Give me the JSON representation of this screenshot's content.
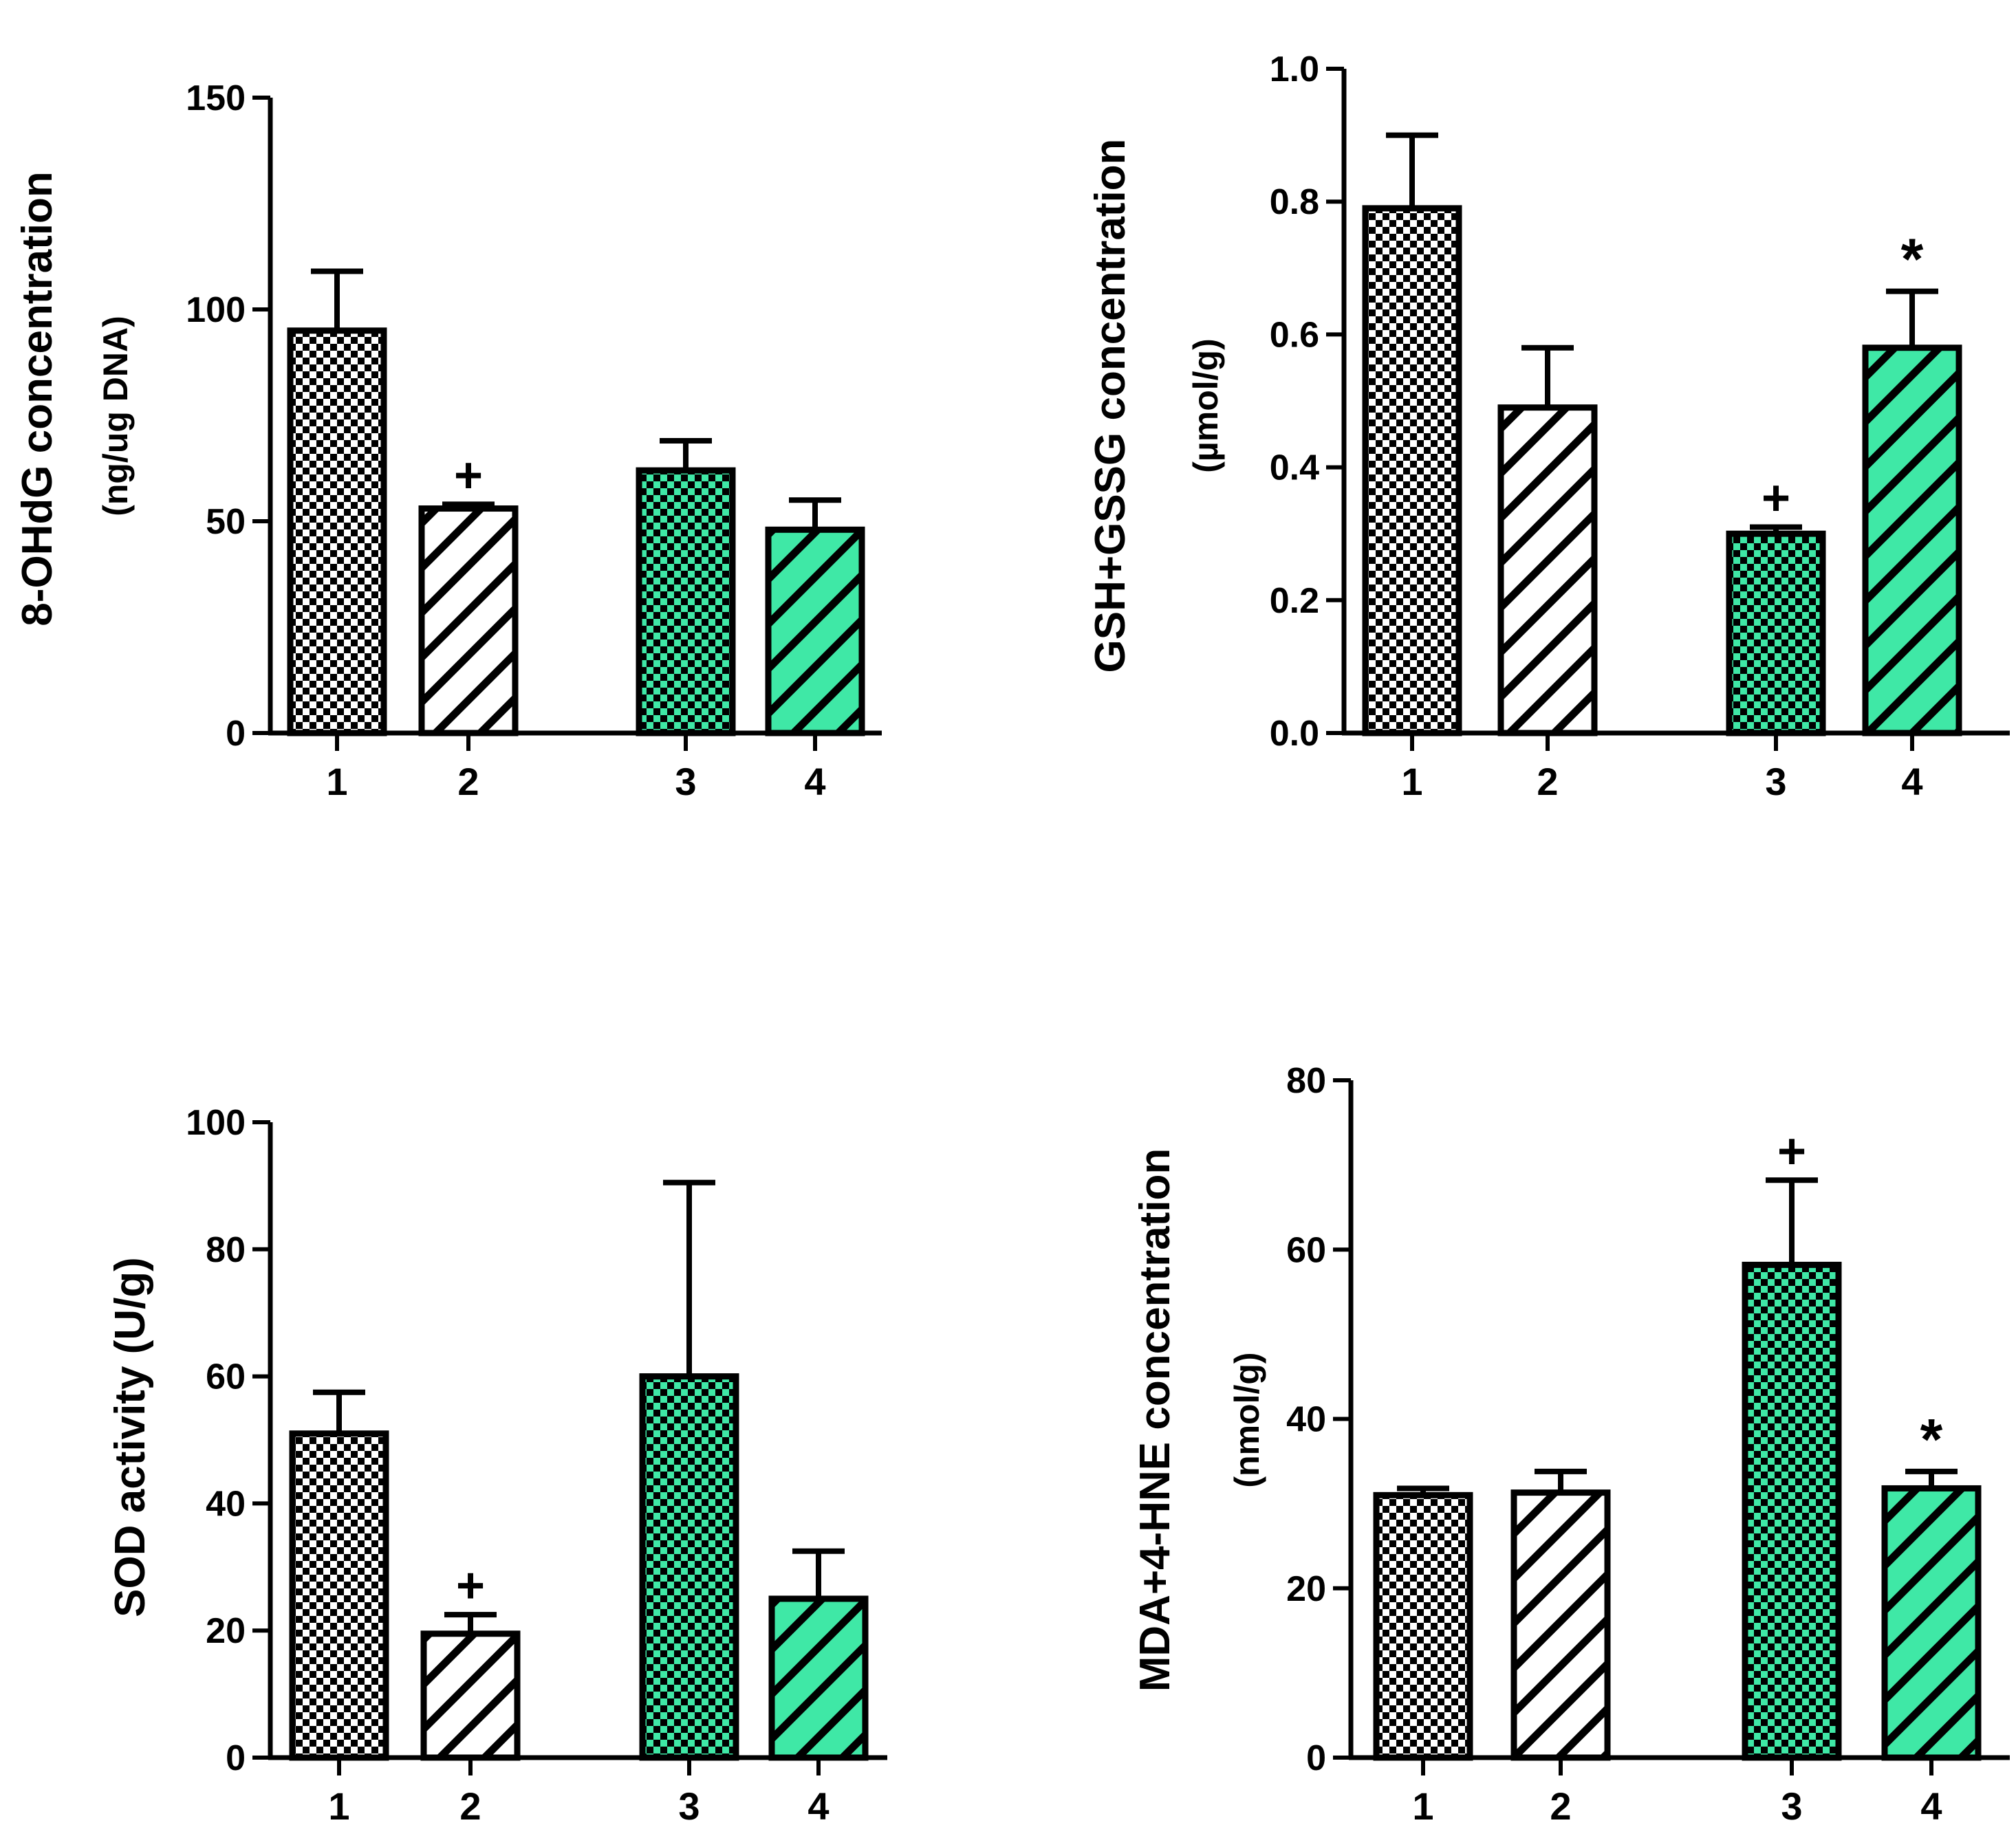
{
  "colors": {
    "ink": "#000000",
    "white_fill": "#ffffff",
    "green_fill": "#3fe8a6"
  },
  "chart_data": [
    {
      "type": "bar",
      "name": "panel-a",
      "categories": [
        "1",
        "2",
        "3",
        "4"
      ],
      "values": [
        95,
        53,
        62,
        48
      ],
      "errors": [
        14,
        1,
        7,
        7
      ],
      "patterns": [
        "checker",
        "hatch",
        "checker",
        "hatch"
      ],
      "fills": [
        "white",
        "white",
        "green",
        "green"
      ],
      "markers": [
        "",
        "+",
        "",
        ""
      ],
      "title": "",
      "xlabel": "",
      "ylabel": "8-OHdG concentration",
      "ylabel2": "(ng/ug DNA)",
      "ylim": [
        0,
        150
      ],
      "yticks": [
        0,
        50,
        100,
        150
      ],
      "ytick_labels": [
        "0",
        "50",
        "100",
        "150"
      ]
    },
    {
      "type": "bar",
      "name": "panel-b",
      "categories": [
        "1",
        "2",
        "3",
        "4"
      ],
      "values": [
        0.79,
        0.49,
        0.3,
        0.58
      ],
      "errors": [
        0.11,
        0.09,
        0.01,
        0.085
      ],
      "patterns": [
        "checker",
        "hatch",
        "checker",
        "hatch"
      ],
      "fills": [
        "white",
        "white",
        "green",
        "green"
      ],
      "markers": [
        "",
        "",
        "+",
        "*"
      ],
      "title": "",
      "xlabel": "",
      "ylabel": "GSH+GSSG concentration",
      "ylabel2": "(µmol/g)",
      "ylim": [
        0,
        1.0
      ],
      "yticks": [
        0,
        0.2,
        0.4,
        0.6,
        0.8,
        1.0
      ],
      "ytick_labels": [
        "0.0",
        "0.2",
        "0.4",
        "0.6",
        "0.8",
        "1.0"
      ]
    },
    {
      "type": "bar",
      "name": "panel-c",
      "categories": [
        "1",
        "2",
        "3",
        "4"
      ],
      "values": [
        51,
        19.5,
        60,
        25
      ],
      "errors": [
        6.5,
        3,
        30.5,
        7.5
      ],
      "patterns": [
        "checker",
        "hatch",
        "checker",
        "hatch"
      ],
      "fills": [
        "white",
        "white",
        "green",
        "green"
      ],
      "markers": [
        "",
        "+",
        "",
        ""
      ],
      "title": "",
      "xlabel": "",
      "ylabel": "SOD activity (U/g)",
      "ylabel2": "",
      "ylim": [
        0,
        100
      ],
      "yticks": [
        0,
        20,
        40,
        60,
        80,
        100
      ],
      "ytick_labels": [
        "0",
        "20",
        "40",
        "60",
        "80",
        "100"
      ]
    },
    {
      "type": "bar",
      "name": "panel-d",
      "categories": [
        "1",
        "2",
        "3",
        "4"
      ],
      "values": [
        31,
        31.3,
        58.2,
        31.8
      ],
      "errors": [
        0.8,
        2.5,
        10,
        2
      ],
      "patterns": [
        "checker",
        "hatch",
        "checker",
        "hatch"
      ],
      "fills": [
        "white",
        "white",
        "green",
        "green"
      ],
      "markers": [
        "",
        "",
        "+",
        "*"
      ],
      "title": "",
      "xlabel": "",
      "ylabel": "MDA+4-HNE concentration",
      "ylabel2": "(nmol/g)",
      "ylim": [
        0,
        80
      ],
      "yticks": [
        0,
        20,
        40,
        60,
        80
      ],
      "ytick_labels": [
        "0",
        "20",
        "40",
        "60",
        "80"
      ]
    }
  ]
}
